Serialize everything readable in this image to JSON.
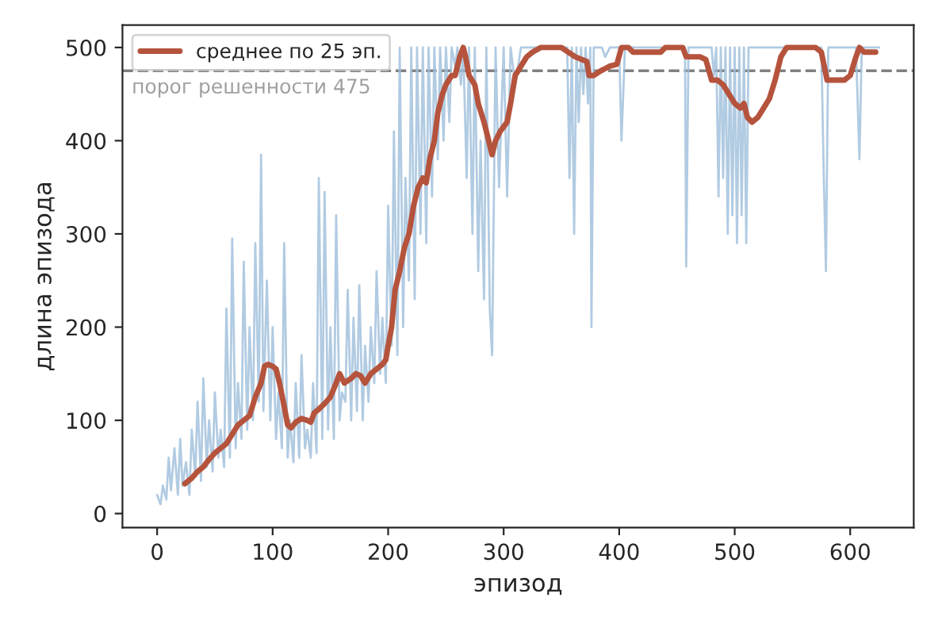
{
  "chart_data": {
    "type": "line",
    "xlabel": "эпизод",
    "ylabel": "длина эпизода",
    "xlim": [
      -30,
      655
    ],
    "ylim": [
      -15,
      524
    ],
    "xticks": [
      0,
      100,
      200,
      300,
      400,
      500,
      600
    ],
    "yticks": [
      0,
      100,
      200,
      300,
      400,
      500
    ],
    "grid": false,
    "legend": "top left",
    "line_style": "solid",
    "marker": "none",
    "ref_lines": [
      {
        "axis": "y",
        "value": 475,
        "label": "порог решенности 475",
        "color": "#808080",
        "line_style": "dashed"
      }
    ],
    "series": [
      {
        "color": "#9dbedb",
        "x": [
          0,
          3,
          5,
          8,
          10,
          12,
          15,
          18,
          20,
          22,
          25,
          28,
          30,
          33,
          35,
          38,
          40,
          43,
          45,
          48,
          50,
          53,
          55,
          58,
          60,
          63,
          65,
          68,
          70,
          73,
          75,
          78,
          80,
          83,
          85,
          88,
          90,
          92,
          95,
          98,
          100,
          103,
          105,
          108,
          110,
          113,
          115,
          118,
          120,
          123,
          125,
          128,
          130,
          133,
          135,
          138,
          140,
          143,
          145,
          148,
          150,
          153,
          155,
          158,
          160,
          163,
          165,
          168,
          170,
          173,
          175,
          178,
          180,
          183,
          185,
          188,
          190,
          193,
          195,
          198,
          200,
          203,
          205,
          208,
          210,
          213,
          215,
          218,
          220,
          223,
          225,
          228,
          230,
          233,
          235,
          238,
          240,
          243,
          245,
          248,
          250,
          253,
          255,
          258,
          260,
          263,
          265,
          268,
          270,
          273,
          275,
          278,
          280,
          283,
          285,
          288,
          290,
          293,
          296,
          300,
          303,
          306,
          310,
          315,
          320,
          330,
          340,
          355,
          357,
          359,
          361,
          363,
          365,
          367,
          369,
          371,
          373,
          375,
          376,
          378,
          385,
          388,
          392,
          400,
          402,
          405,
          420,
          430,
          457,
          458,
          460,
          480,
          482,
          484,
          486,
          488,
          490,
          492,
          494,
          496,
          498,
          500,
          502,
          504,
          506,
          508,
          510,
          512,
          515,
          540,
          575,
          577,
          579,
          581,
          600,
          605,
          608,
          610,
          625
        ],
        "values": [
          20,
          10,
          30,
          15,
          60,
          25,
          70,
          20,
          80,
          30,
          55,
          20,
          90,
          40,
          120,
          35,
          145,
          50,
          100,
          45,
          130,
          60,
          90,
          50,
          220,
          60,
          295,
          70,
          140,
          80,
          270,
          90,
          200,
          100,
          290,
          120,
          385,
          110,
          250,
          100,
          200,
          80,
          130,
          70,
          290,
          60,
          100,
          55,
          140,
          60,
          170,
          70,
          90,
          60,
          140,
          65,
          360,
          80,
          345,
          90,
          200,
          80,
          320,
          100,
          130,
          120,
          240,
          100,
          210,
          110,
          245,
          100,
          180,
          120,
          200,
          140,
          260,
          150,
          210,
          140,
          330,
          180,
          410,
          170,
          500,
          200,
          360,
          250,
          500,
          230,
          500,
          300,
          500,
          290,
          500,
          340,
          500,
          380,
          500,
          400,
          500,
          420,
          500,
          480,
          500,
          460,
          500,
          360,
          500,
          300,
          500,
          260,
          400,
          230,
          500,
          220,
          170,
          500,
          350,
          500,
          340,
          500,
          460,
          500,
          500,
          500,
          500,
          500,
          360,
          500,
          300,
          500,
          420,
          500,
          450,
          500,
          440,
          500,
          200,
          500,
          500,
          490,
          500,
          500,
          400,
          500,
          500,
          500,
          500,
          265,
          500,
          500,
          470,
          500,
          340,
          500,
          360,
          500,
          300,
          500,
          320,
          500,
          290,
          500,
          320,
          500,
          290,
          500,
          500,
          500,
          500,
          370,
          260,
          500,
          500,
          500,
          380,
          500,
          500
        ]
      },
      {
        "name": "среднее по 25 эп.",
        "color": "#b5533c",
        "x": [
          24,
          30,
          35,
          40,
          45,
          50,
          55,
          60,
          65,
          70,
          75,
          80,
          85,
          90,
          93,
          96,
          100,
          103,
          106,
          110,
          113,
          116,
          120,
          125,
          130,
          133,
          136,
          140,
          145,
          150,
          155,
          158,
          162,
          168,
          172,
          176,
          180,
          185,
          190,
          195,
          198,
          200,
          203,
          206,
          210,
          214,
          218,
          222,
          226,
          230,
          233,
          236,
          240,
          243,
          247,
          250,
          255,
          258,
          262,
          265,
          267,
          270,
          275,
          278,
          283,
          287,
          290,
          293,
          297,
          300,
          303,
          306,
          310,
          315,
          320,
          325,
          332,
          340,
          350,
          356,
          362,
          368,
          372,
          374,
          378,
          384,
          392,
          398,
          402,
          408,
          412,
          425,
          436,
          440,
          455,
          458,
          470,
          475,
          480,
          485,
          490,
          495,
          500,
          505,
          508,
          511,
          515,
          520,
          525,
          530,
          535,
          540,
          545,
          560,
          570,
          575,
          580,
          595,
          600,
          605,
          608,
          612,
          622
        ],
        "values": [
          32,
          38,
          45,
          50,
          58,
          65,
          70,
          75,
          85,
          95,
          100,
          105,
          125,
          140,
          158,
          160,
          158,
          155,
          140,
          115,
          95,
          92,
          98,
          102,
          100,
          98,
          108,
          112,
          118,
          125,
          140,
          150,
          140,
          145,
          150,
          148,
          140,
          150,
          155,
          160,
          165,
          180,
          200,
          240,
          260,
          285,
          300,
          330,
          350,
          360,
          355,
          380,
          400,
          430,
          450,
          460,
          470,
          470,
          490,
          500,
          490,
          470,
          460,
          440,
          420,
          400,
          385,
          400,
          410,
          415,
          420,
          440,
          470,
          480,
          490,
          495,
          500,
          500,
          500,
          495,
          490,
          487,
          485,
          470,
          470,
          475,
          480,
          482,
          500,
          500,
          495,
          495,
          495,
          500,
          500,
          490,
          490,
          487,
          465,
          465,
          460,
          450,
          440,
          435,
          440,
          425,
          420,
          425,
          435,
          445,
          465,
          490,
          500,
          500,
          500,
          495,
          465,
          465,
          470,
          490,
          500,
          495,
          495
        ]
      }
    ]
  }
}
